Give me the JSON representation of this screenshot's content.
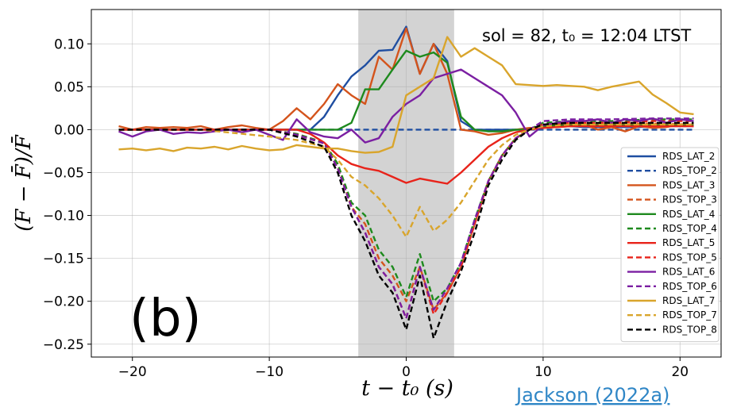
{
  "chart_data": {
    "type": "line",
    "title": "",
    "xlabel": "t − t₀ (s)",
    "ylabel": "(F − F̄)/F̄",
    "xlim": [
      -23,
      23
    ],
    "ylim": [
      -0.265,
      0.14
    ],
    "xticks": [
      -20,
      -10,
      0,
      10,
      20
    ],
    "xtick_labels": [
      "−20",
      "−10",
      "0",
      "10",
      "20"
    ],
    "yticks": [
      -0.25,
      -0.2,
      -0.15,
      -0.1,
      -0.05,
      0.0,
      0.05,
      0.1
    ],
    "ytick_labels": [
      "−0.25",
      "−0.20",
      "−0.15",
      "−0.10",
      "−0.05",
      "0.00",
      "0.05",
      "0.10"
    ],
    "grid": true,
    "legend_position": "lower-right",
    "shaded_region": [
      -3.5,
      3.5
    ],
    "shaded_color": "#d3d3d3",
    "annotation": "sol = 82, t₀ = 12:04 LTST",
    "panel_label": "(b)",
    "credit": "Jackson (2022a)",
    "series": [
      {
        "name": "RDS_LAT_2",
        "color": "#1f4ea1",
        "dash": "solid",
        "x": [
          -21,
          -19,
          -17,
          -15,
          -13,
          -11,
          -9,
          -8,
          -7,
          -6,
          -5,
          -4,
          -3,
          -2,
          -1,
          0,
          1,
          2,
          3,
          4,
          5,
          6,
          7,
          8,
          9,
          10,
          11,
          13,
          15,
          17,
          19,
          21
        ],
        "y": [
          0,
          0,
          0,
          0,
          0,
          0,
          0,
          0,
          0,
          0.015,
          0.04,
          0.062,
          0.075,
          0.092,
          0.093,
          0.12,
          0.065,
          0.1,
          0.08,
          0.01,
          0,
          0,
          0,
          0,
          0,
          0.005,
          0.005,
          0.003,
          0.003,
          0.003,
          0.004,
          0.004
        ]
      },
      {
        "name": "RDS_TOP_2",
        "color": "#1f4ea1",
        "dash": "dashed",
        "x": [
          -21,
          -15,
          -10,
          -5,
          0,
          5,
          10,
          15,
          21
        ],
        "y": [
          0,
          0,
          0,
          0,
          0,
          0,
          0,
          0,
          0
        ]
      },
      {
        "name": "RDS_LAT_3",
        "color": "#d4541c",
        "dash": "solid",
        "x": [
          -21,
          -20,
          -19,
          -18,
          -17,
          -16,
          -15,
          -14,
          -13,
          -12,
          -11,
          -10,
          -9,
          -8,
          -7,
          -6,
          -5,
          -4,
          -3,
          -2,
          -1,
          0,
          1,
          2,
          3,
          4,
          5,
          6,
          7,
          8,
          9,
          10,
          11,
          12,
          13,
          14,
          15,
          16,
          17,
          18,
          19,
          20,
          21
        ],
        "y": [
          0.004,
          0,
          0.003,
          0.002,
          0.003,
          0.002,
          0.004,
          0,
          0.003,
          0.005,
          0.002,
          0,
          0.01,
          0.025,
          0.012,
          0.03,
          0.053,
          0.04,
          0.03,
          0.085,
          0.07,
          0.118,
          0.065,
          0.1,
          0.065,
          0,
          -0.002,
          -0.006,
          -0.004,
          0,
          0.002,
          0.002,
          0.003,
          0.004,
          0.006,
          0,
          0.003,
          -0.002,
          0.004,
          0.002,
          0.003,
          0.006,
          0.004
        ]
      },
      {
        "name": "RDS_TOP_3",
        "color": "#d4541c",
        "dash": "dashed",
        "x": [
          -21,
          -15,
          -10,
          -8,
          -6,
          -5,
          -4,
          -3,
          -2,
          -1,
          0,
          1,
          2,
          3,
          4,
          5,
          6,
          7,
          8,
          9,
          10,
          12,
          15,
          18,
          21
        ],
        "y": [
          0,
          0,
          0,
          -0.005,
          -0.015,
          -0.04,
          -0.09,
          -0.11,
          -0.15,
          -0.17,
          -0.2,
          -0.16,
          -0.21,
          -0.19,
          -0.16,
          -0.11,
          -0.06,
          -0.03,
          -0.01,
          0,
          0.005,
          0.006,
          0.006,
          0.007,
          0.006
        ]
      },
      {
        "name": "RDS_LAT_4",
        "color": "#1e8a1e",
        "dash": "solid",
        "x": [
          -21,
          -15,
          -10,
          -8,
          -7,
          -6,
          -5,
          -4,
          -3,
          -2,
          -1,
          0,
          1,
          2,
          3,
          4,
          5,
          6,
          7,
          8,
          9,
          10,
          12,
          15,
          18,
          21
        ],
        "y": [
          0,
          0,
          0,
          0,
          0,
          0,
          0,
          0.008,
          0.047,
          0.047,
          0.07,
          0.092,
          0.085,
          0.09,
          0.078,
          0.015,
          0,
          -0.002,
          -0.002,
          0,
          0,
          0.004,
          0.005,
          0.005,
          0.005,
          0.005
        ]
      },
      {
        "name": "RDS_TOP_4",
        "color": "#1e8a1e",
        "dash": "dashed",
        "x": [
          -21,
          -15,
          -10,
          -8,
          -6,
          -5,
          -4,
          -3,
          -2,
          -1,
          0,
          1,
          2,
          3,
          4,
          5,
          6,
          7,
          8,
          9,
          10,
          12,
          15,
          18,
          21
        ],
        "y": [
          0,
          0,
          0,
          -0.005,
          -0.015,
          -0.04,
          -0.085,
          -0.1,
          -0.14,
          -0.16,
          -0.195,
          -0.145,
          -0.2,
          -0.185,
          -0.155,
          -0.105,
          -0.06,
          -0.03,
          -0.01,
          0,
          0.008,
          0.01,
          0.01,
          0.012,
          0.012
        ]
      },
      {
        "name": "RDS_LAT_5",
        "color": "#e8231a",
        "dash": "solid",
        "x": [
          -21,
          -15,
          -10,
          -8,
          -7,
          -6,
          -5,
          -4,
          -3,
          -2,
          -1,
          0,
          1,
          2,
          3,
          4,
          5,
          6,
          7,
          8,
          9,
          10,
          12,
          15,
          18,
          21
        ],
        "y": [
          0,
          0,
          0,
          0,
          -0.005,
          -0.015,
          -0.03,
          -0.04,
          -0.045,
          -0.048,
          -0.055,
          -0.062,
          -0.057,
          -0.06,
          -0.063,
          -0.05,
          -0.035,
          -0.02,
          -0.01,
          -0.003,
          0,
          0.002,
          0.004,
          0.004,
          0.004,
          0.004
        ]
      },
      {
        "name": "RDS_TOP_5",
        "color": "#e8231a",
        "dash": "dashed",
        "x": [
          -21,
          -15,
          -10,
          -8,
          -6,
          -5,
          -4,
          -3,
          -2,
          -1,
          0,
          1,
          2,
          3,
          4,
          5,
          6,
          7,
          8,
          9,
          10,
          12,
          15,
          18,
          21
        ],
        "y": [
          0,
          0,
          0,
          -0.006,
          -0.016,
          -0.045,
          -0.09,
          -0.12,
          -0.16,
          -0.18,
          -0.22,
          -0.16,
          -0.215,
          -0.19,
          -0.16,
          -0.11,
          -0.06,
          -0.03,
          -0.01,
          0,
          0.006,
          0.008,
          0.008,
          0.01,
          0.01
        ]
      },
      {
        "name": "RDS_LAT_6",
        "color": "#7b1fa2",
        "dash": "solid",
        "x": [
          -21,
          -20,
          -19,
          -18,
          -17,
          -16,
          -15,
          -14,
          -13,
          -12,
          -11,
          -10,
          -9,
          -8,
          -7,
          -6,
          -5,
          -4,
          -3,
          -2,
          -1,
          0,
          1,
          2,
          3,
          4,
          5,
          6,
          7,
          8,
          9,
          10,
          11,
          12,
          13,
          14,
          15,
          16,
          17,
          18,
          19,
          20,
          21
        ],
        "y": [
          -0.002,
          -0.008,
          -0.002,
          0,
          -0.005,
          -0.003,
          -0.004,
          -0.002,
          0,
          -0.003,
          0,
          -0.006,
          -0.012,
          0.012,
          -0.003,
          -0.008,
          -0.01,
          0,
          -0.015,
          -0.01,
          0.015,
          0.03,
          0.04,
          0.06,
          0.065,
          0.07,
          0.06,
          0.05,
          0.04,
          0.02,
          -0.008,
          0.005,
          0.008,
          0.01,
          0.01,
          0.012,
          0.008,
          0.012,
          0.01,
          0.013,
          0.008,
          0.012,
          0.01
        ]
      },
      {
        "name": "RDS_TOP_6",
        "color": "#7b1fa2",
        "dash": "dashed",
        "x": [
          -21,
          -15,
          -10,
          -8,
          -6,
          -5,
          -4,
          -3,
          -2,
          -1,
          0,
          1,
          2,
          3,
          4,
          5,
          6,
          7,
          8,
          9,
          10,
          12,
          15,
          18,
          21
        ],
        "y": [
          0,
          0,
          0,
          -0.006,
          -0.016,
          -0.045,
          -0.09,
          -0.12,
          -0.16,
          -0.18,
          -0.22,
          -0.16,
          -0.21,
          -0.185,
          -0.155,
          -0.105,
          -0.06,
          -0.03,
          -0.01,
          0,
          0.01,
          0.012,
          0.012,
          0.013,
          0.013
        ]
      },
      {
        "name": "RDS_LAT_7",
        "color": "#d9a52c",
        "dash": "solid",
        "x": [
          -21,
          -20,
          -19,
          -18,
          -17,
          -16,
          -15,
          -14,
          -13,
          -12,
          -11,
          -10,
          -9,
          -8,
          -7,
          -6,
          -5,
          -4,
          -3,
          -2,
          -1,
          0,
          1,
          2,
          3,
          4,
          5,
          6,
          7,
          8,
          9,
          10,
          11,
          12,
          13,
          14,
          15,
          16,
          17,
          18,
          19,
          20,
          21
        ],
        "y": [
          -0.023,
          -0.022,
          -0.024,
          -0.022,
          -0.025,
          -0.021,
          -0.022,
          -0.02,
          -0.023,
          -0.019,
          -0.022,
          -0.024,
          -0.023,
          -0.018,
          -0.02,
          -0.022,
          -0.022,
          -0.025,
          -0.027,
          -0.026,
          -0.02,
          0.04,
          0.05,
          0.06,
          0.108,
          0.085,
          0.095,
          0.085,
          0.075,
          0.053,
          0.052,
          0.051,
          0.052,
          0.051,
          0.05,
          0.046,
          0.05,
          0.053,
          0.056,
          0.041,
          0.031,
          0.02,
          0.018
        ]
      },
      {
        "name": "RDS_TOP_7",
        "color": "#d9a52c",
        "dash": "dashed",
        "x": [
          -21,
          -15,
          -10,
          -8,
          -6,
          -5,
          -4,
          -3,
          -2,
          -1,
          0,
          1,
          2,
          3,
          4,
          5,
          6,
          7,
          8,
          9,
          10,
          12,
          15,
          18,
          21
        ],
        "y": [
          0,
          0,
          -0.008,
          -0.012,
          -0.02,
          -0.035,
          -0.055,
          -0.065,
          -0.08,
          -0.1,
          -0.125,
          -0.09,
          -0.118,
          -0.105,
          -0.085,
          -0.06,
          -0.035,
          -0.018,
          -0.006,
          0,
          0.004,
          0.006,
          0.006,
          0.006,
          0.006
        ]
      },
      {
        "name": "RDS_TOP_8",
        "color": "#000000",
        "dash": "dashed",
        "x": [
          -21,
          -15,
          -10,
          -8,
          -6,
          -5,
          -4,
          -3,
          -2,
          -1,
          0,
          1,
          2,
          3,
          4,
          5,
          6,
          7,
          8,
          9,
          10,
          12,
          15,
          18,
          21
        ],
        "y": [
          0,
          0,
          0,
          -0.008,
          -0.02,
          -0.05,
          -0.1,
          -0.13,
          -0.17,
          -0.19,
          -0.233,
          -0.17,
          -0.243,
          -0.2,
          -0.165,
          -0.12,
          -0.065,
          -0.035,
          -0.012,
          0,
          0.006,
          0.008,
          0.008,
          0.008,
          0.008
        ]
      }
    ]
  }
}
